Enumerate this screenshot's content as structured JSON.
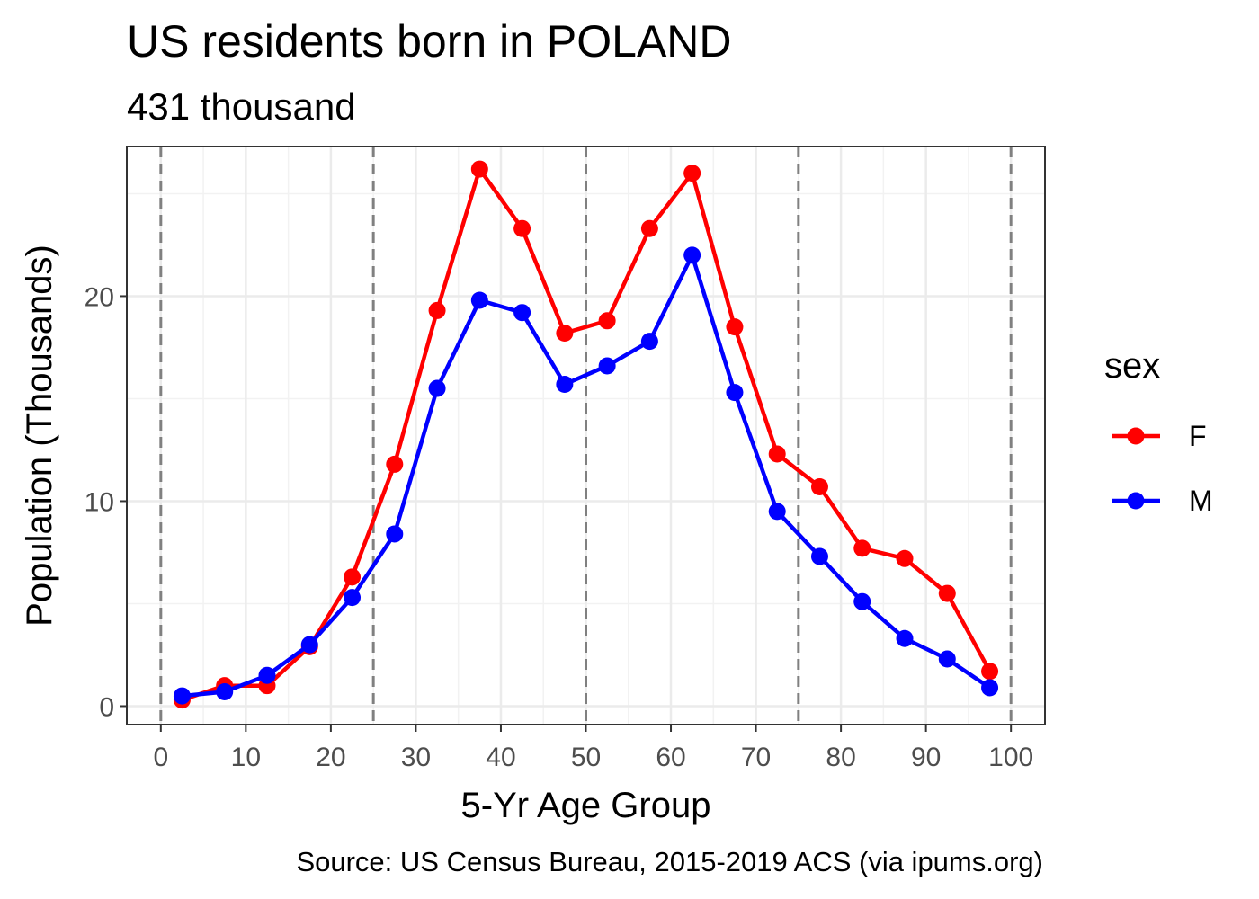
{
  "chart_data": {
    "type": "line",
    "title": "US residents born in POLAND",
    "subtitle": "431 thousand",
    "xlabel": "5-Yr Age Group",
    "ylabel": "Population (Thousands)",
    "caption": "Source: US Census Bureau, 2015-2019 ACS (via ipums.org)",
    "xlim": [
      -4,
      104
    ],
    "ylim": [
      -0.9,
      27.3
    ],
    "x_ticks": [
      0,
      10,
      20,
      30,
      40,
      50,
      60,
      70,
      80,
      90,
      100
    ],
    "x_tick_labels": [
      "0",
      "10",
      "20",
      "30",
      "40",
      "50",
      "60",
      "70",
      "80",
      "90",
      "100"
    ],
    "y_ticks": [
      0,
      10,
      20
    ],
    "y_tick_labels": [
      "0",
      "10",
      "20"
    ],
    "x_minor_grid": [
      5,
      15,
      25,
      35,
      45,
      55,
      65,
      75,
      85,
      95
    ],
    "y_minor_grid": [
      5,
      15,
      25
    ],
    "reference_lines_x": [
      0,
      25,
      50,
      75,
      100
    ],
    "grid": true,
    "legend": {
      "title": "sex",
      "position": "right"
    },
    "x": [
      2.5,
      7.5,
      12.5,
      17.5,
      22.5,
      27.5,
      32.5,
      37.5,
      42.5,
      47.5,
      52.5,
      57.5,
      62.5,
      67.5,
      72.5,
      77.5,
      82.5,
      87.5,
      92.5,
      97.5
    ],
    "series": [
      {
        "name": "F",
        "color": "#ff0000",
        "values": [
          0.3,
          1.0,
          1.0,
          2.9,
          6.3,
          11.8,
          19.3,
          26.2,
          23.3,
          18.2,
          18.8,
          23.3,
          26.0,
          18.5,
          12.3,
          10.7,
          7.7,
          7.2,
          5.5,
          1.7
        ]
      },
      {
        "name": "M",
        "color": "#0000ff",
        "values": [
          0.5,
          0.7,
          1.5,
          3.0,
          5.3,
          8.4,
          15.5,
          19.8,
          19.2,
          15.7,
          16.6,
          17.8,
          22.0,
          15.3,
          9.5,
          7.3,
          5.1,
          3.3,
          2.3,
          0.9
        ]
      }
    ]
  }
}
